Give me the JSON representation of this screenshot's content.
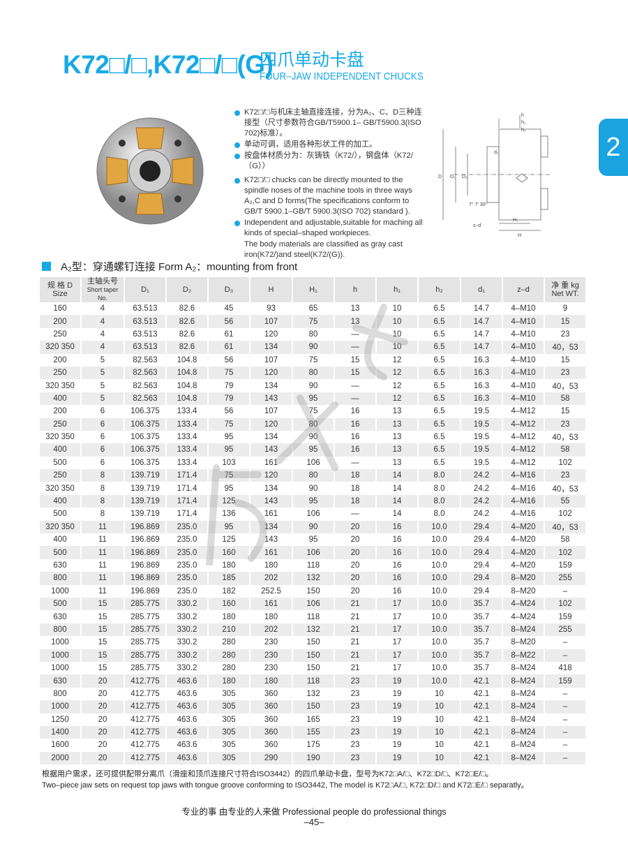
{
  "header": {
    "model": "K72□/□,K72□/□(G)",
    "title_cn": "四爪单动卡盘",
    "title_en": "FOUR–JAW INDEPENDENT CHUCKS"
  },
  "side_tab": "2",
  "bullets": [
    {
      "text": "K72□/□与机床主轴直接连接，分为A₂、C、D三种连接型（尺寸参数符合GB/T5900.1–  GB/T5900.3(ISO 702)标准）。",
      "dot": true
    },
    {
      "text": "单动可调，适用各种形状工件的加工。",
      "dot": true
    },
    {
      "text": "按盘体材质分为：灰铸铁（K72/），钢盘体（K72/（G））",
      "dot": true
    },
    {
      "text": "K72□/□ chucks can be directly mounted to the spindle noses of the machine tools in three ways A₂,C and D forms(The specifications conform to GB/T 5900.1–GB/T 5900.3(ISO 702) standard ).",
      "dot": true
    },
    {
      "text": "Independent and adjustable,suitable for maching all kinds of special–shaped workpieces.",
      "dot": true
    },
    {
      "text": "The body materials are classified as gray cast iron(K72/)and steel(K72/(G)).",
      "dot": false
    }
  ],
  "diagram": {
    "labels": [
      "h",
      "h₁",
      "h₂",
      "d₁",
      "D",
      "D₁",
      "D₂",
      "7° 7′ 30″",
      "z–d",
      "H₁",
      "H"
    ]
  },
  "section": "A₂型：穿通螺钉连接   Form A₂：mounting from front",
  "table": {
    "headers": [
      [
        "规 格 D",
        "Size"
      ],
      [
        "主轴头号",
        "Short taper No."
      ],
      [
        "D₁"
      ],
      [
        "D₂"
      ],
      [
        "D₃"
      ],
      [
        "H"
      ],
      [
        "H₁"
      ],
      [
        "h"
      ],
      [
        "h₁"
      ],
      [
        "h₂"
      ],
      [
        "d₁"
      ],
      [
        "z–d"
      ],
      [
        "净 重 kg",
        "Net WT."
      ]
    ],
    "rows": [
      [
        "160",
        "4",
        "63.513",
        "82.6",
        "45",
        "93",
        "65",
        "13",
        "10",
        "6.5",
        "14.7",
        "4–M10",
        "9"
      ],
      [
        "200",
        "4",
        "63.513",
        "82.6",
        "56",
        "107",
        "75",
        "13",
        "10",
        "6.5",
        "14.7",
        "4–M10",
        "15"
      ],
      [
        "250",
        "4",
        "63.513",
        "82.6",
        "61",
        "120",
        "80",
        "—",
        "10",
        "6.5",
        "14.7",
        "4–M10",
        "23"
      ],
      [
        "320 350",
        "4",
        "63.513",
        "82.6",
        "61",
        "134",
        "90",
        "—",
        "10",
        "6.5",
        "14.7",
        "4–M10",
        "40，53"
      ],
      [
        "200",
        "5",
        "82.563",
        "104.8",
        "56",
        "107",
        "75",
        "15",
        "12",
        "6.5",
        "16.3",
        "4–M10",
        "15"
      ],
      [
        "250",
        "5",
        "82.563",
        "104.8",
        "75",
        "120",
        "80",
        "15",
        "12",
        "6.5",
        "16.3",
        "4–M10",
        "23"
      ],
      [
        "320 350",
        "5",
        "82.563",
        "104.8",
        "79",
        "134",
        "90",
        "—",
        "12",
        "6.5",
        "16.3",
        "4–M10",
        "40，53"
      ],
      [
        "400",
        "5",
        "82.563",
        "104.8",
        "79",
        "143",
        "95",
        "—",
        "12",
        "6.5",
        "16.3",
        "4–M10",
        "58"
      ],
      [
        "200",
        "6",
        "106.375",
        "133.4",
        "56",
        "107",
        "75",
        "16",
        "13",
        "6.5",
        "19.5",
        "4–M12",
        "15"
      ],
      [
        "250",
        "6",
        "106.375",
        "133.4",
        "75",
        "120",
        "80",
        "16",
        "13",
        "6.5",
        "19.5",
        "4–M12",
        "23"
      ],
      [
        "320 350",
        "6",
        "106.375",
        "133.4",
        "95",
        "134",
        "90",
        "16",
        "13",
        "6.5",
        "19.5",
        "4–M12",
        "40，53"
      ],
      [
        "400",
        "6",
        "106.375",
        "133.4",
        "95",
        "143",
        "95",
        "16",
        "13",
        "6.5",
        "19.5",
        "4–M12",
        "58"
      ],
      [
        "500",
        "6",
        "106.375",
        "133.4",
        "103",
        "161",
        "106",
        "—",
        "13",
        "6.5",
        "19.5",
        "4–M12",
        "102"
      ],
      [
        "250",
        "8",
        "139.719",
        "171.4",
        "75",
        "120",
        "80",
        "18",
        "14",
        "8.0",
        "24.2",
        "4–M16",
        "23"
      ],
      [
        "320 350",
        "8",
        "139.719",
        "171.4",
        "95",
        "134",
        "90",
        "18",
        "14",
        "8.0",
        "24.2",
        "4–M16",
        "40，53"
      ],
      [
        "400",
        "8",
        "139.719",
        "171.4",
        "125",
        "143",
        "95",
        "18",
        "14",
        "8.0",
        "24.2",
        "4–M16",
        "55"
      ],
      [
        "500",
        "8",
        "139.719",
        "171.4",
        "136",
        "161",
        "106",
        "—",
        "14",
        "8.0",
        "24.2",
        "4–M16",
        "102"
      ],
      [
        "320 350",
        "11",
        "196.869",
        "235.0",
        "95",
        "134",
        "90",
        "20",
        "16",
        "10.0",
        "29.4",
        "4–M20",
        "40，53"
      ],
      [
        "400",
        "11",
        "196.869",
        "235.0",
        "125",
        "143",
        "95",
        "20",
        "16",
        "10.0",
        "29.4",
        "4–M20",
        "58"
      ],
      [
        "500",
        "11",
        "196.869",
        "235.0",
        "160",
        "161",
        "106",
        "20",
        "16",
        "10.0",
        "29.4",
        "4–M20",
        "102"
      ],
      [
        "630",
        "11",
        "196.869",
        "235.0",
        "180",
        "180",
        "118",
        "20",
        "16",
        "10.0",
        "29.4",
        "4–M20",
        "159"
      ],
      [
        "800",
        "11",
        "196.869",
        "235.0",
        "185",
        "202",
        "132",
        "20",
        "16",
        "10.0",
        "29.4",
        "8–M20",
        "255"
      ],
      [
        "1000",
        "11",
        "196.869",
        "235.0",
        "182",
        "252.5",
        "150",
        "20",
        "16",
        "10.0",
        "29.4",
        "8–M20",
        "–"
      ],
      [
        "500",
        "15",
        "285.775",
        "330.2",
        "160",
        "161",
        "106",
        "21",
        "17",
        "10.0",
        "35.7",
        "4–M24",
        "102"
      ],
      [
        "630",
        "15",
        "285.775",
        "330.2",
        "180",
        "180",
        "118",
        "21",
        "17",
        "10.0",
        "35.7",
        "4–M24",
        "159"
      ],
      [
        "800",
        "15",
        "285.775",
        "330.2",
        "210",
        "202",
        "132",
        "21",
        "17",
        "10.0",
        "35.7",
        "8–M24",
        "255"
      ],
      [
        "1000",
        "15",
        "285.775",
        "330.2",
        "280",
        "230",
        "150",
        "21",
        "17",
        "10.0",
        "35.7",
        "8–M20",
        "–"
      ],
      [
        "1000",
        "15",
        "285.775",
        "330.2",
        "280",
        "230",
        "150",
        "21",
        "17",
        "10.0",
        "35.7",
        "8–M22",
        "–"
      ],
      [
        "1000",
        "15",
        "285.775",
        "330.2",
        "280",
        "230",
        "150",
        "21",
        "17",
        "10.0",
        "35.7",
        "8–M24",
        "418"
      ],
      [
        "630",
        "20",
        "412.775",
        "463.6",
        "180",
        "180",
        "118",
        "23",
        "19",
        "10.0",
        "42.1",
        "8–M24",
        "159"
      ],
      [
        "800",
        "20",
        "412.775",
        "463.6",
        "305",
        "360",
        "132",
        "23",
        "19",
        "10",
        "42.1",
        "8–M24",
        "–"
      ],
      [
        "1000",
        "20",
        "412.775",
        "463.6",
        "305",
        "360",
        "150",
        "23",
        "19",
        "10",
        "42.1",
        "8–M24",
        "–"
      ],
      [
        "1250",
        "20",
        "412.775",
        "463.6",
        "305",
        "360",
        "165",
        "23",
        "19",
        "10",
        "42.1",
        "8–M24",
        "–"
      ],
      [
        "1400",
        "20",
        "412.775",
        "463.6",
        "305",
        "360",
        "155",
        "23",
        "19",
        "10",
        "42.1",
        "8–M24",
        "–"
      ],
      [
        "1600",
        "20",
        "412.775",
        "463.6",
        "305",
        "360",
        "175",
        "23",
        "19",
        "10",
        "42.1",
        "8–M24",
        "–"
      ],
      [
        "2000",
        "20",
        "412.775",
        "463.6",
        "305",
        "290",
        "190",
        "23",
        "19",
        "10",
        "42.1",
        "8–M24",
        "–"
      ]
    ]
  },
  "footnote": {
    "cn": "根据用户需求，还可提供配带分离爪（滑座和顶爪连接尺寸符合ISO3442）的四爪单动卡盘，型号为K72□A/□、K72□D/□、K72□E/□。",
    "en": "Two–piece jaw sets on request top jaws with tongue groove conforming to ISO3442, The model is K72□A/□, K72□D/□ and K72□E/□ separatly。"
  },
  "slogan": "专业的事  由专业的人来做    Professional people do professional things",
  "page_number": "–45–",
  "colors": {
    "accent": "#17a9e6",
    "header_bg": "#e4e4e4",
    "stripe": "#ececec"
  }
}
